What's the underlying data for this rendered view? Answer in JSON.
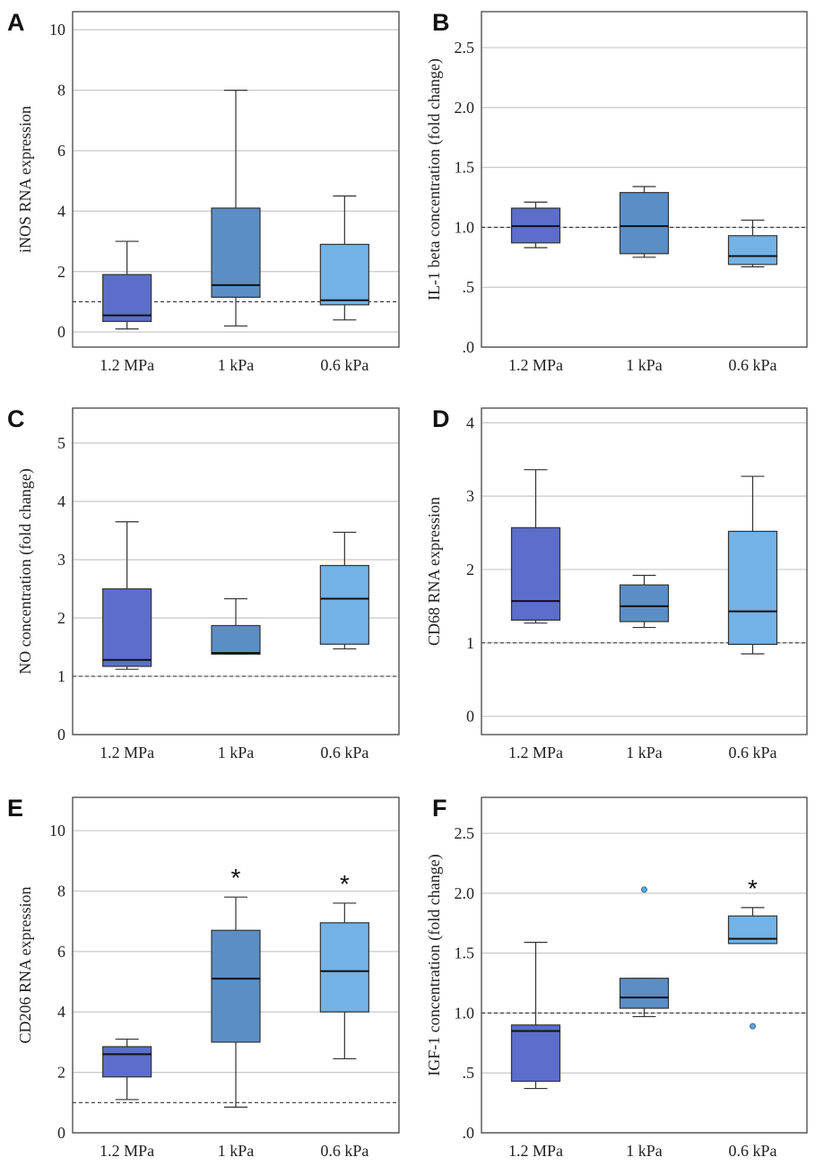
{
  "chart_data": [
    {
      "panel": "A",
      "type": "box",
      "ylabel": "iNOS RNA expression",
      "categories": [
        "1.2 MPa",
        "1 kPa",
        "0.6 kPa"
      ],
      "yticks": [
        "0",
        "2",
        "4",
        "6",
        "8",
        "10"
      ],
      "ylim": [
        -0.5,
        10.6
      ],
      "reference_line": 1.0,
      "boxes": [
        {
          "min": 0.1,
          "q1": 0.35,
          "median": 0.55,
          "q3": 1.9,
          "max": 3.0,
          "color": "#5b6ec9"
        },
        {
          "min": 0.2,
          "q1": 1.15,
          "median": 1.55,
          "q3": 4.1,
          "max": 8.0,
          "color": "#5b8ec5"
        },
        {
          "min": 0.4,
          "q1": 0.9,
          "median": 1.05,
          "q3": 2.9,
          "max": 4.5,
          "color": "#72b2e6"
        }
      ],
      "outliers": [],
      "significance": [
        "",
        "",
        ""
      ]
    },
    {
      "panel": "B",
      "type": "box",
      "ylabel": "IL-1 beta concentration (fold change)",
      "categories": [
        "1.2 MPa",
        "1 kPa",
        "0.6 kPa"
      ],
      "yticks": [
        ".0",
        ".5",
        "1.0",
        "1.5",
        "2.0",
        "2.5"
      ],
      "ylim": [
        0,
        2.8
      ],
      "reference_line": 1.0,
      "boxes": [
        {
          "min": 0.83,
          "q1": 0.87,
          "median": 1.01,
          "q3": 1.16,
          "max": 1.21,
          "color": "#5b6ec9"
        },
        {
          "min": 0.75,
          "q1": 0.78,
          "median": 1.01,
          "q3": 1.29,
          "max": 1.34,
          "color": "#5b8ec5"
        },
        {
          "min": 0.67,
          "q1": 0.69,
          "median": 0.76,
          "q3": 0.93,
          "max": 1.06,
          "color": "#72b2e6"
        }
      ],
      "outliers": [],
      "significance": [
        "",
        "",
        ""
      ]
    },
    {
      "panel": "C",
      "type": "box",
      "ylabel": "NO concentration (fold change)",
      "categories": [
        "1.2 MPa",
        "1 kPa",
        "0.6 kPa"
      ],
      "yticks": [
        "0",
        "1",
        "2",
        "3",
        "4",
        "5"
      ],
      "ylim": [
        0,
        5.6
      ],
      "reference_line": 1.0,
      "boxes": [
        {
          "min": 1.12,
          "q1": 1.17,
          "median": 1.28,
          "q3": 2.5,
          "max": 3.65,
          "color": "#5b6ec9"
        },
        {
          "min": 1.38,
          "q1": 1.38,
          "median": 1.4,
          "q3": 1.87,
          "max": 2.33,
          "color": "#5b8ec5"
        },
        {
          "min": 1.47,
          "q1": 1.55,
          "median": 2.33,
          "q3": 2.9,
          "max": 3.47,
          "color": "#72b2e6"
        }
      ],
      "outliers": [],
      "significance": [
        "",
        "",
        ""
      ]
    },
    {
      "panel": "D",
      "type": "box",
      "ylabel": "CD68 RNA expression",
      "categories": [
        "1.2 MPa",
        "1 kPa",
        "0.6 kPa"
      ],
      "yticks": [
        "0",
        "1",
        "2",
        "3",
        "4"
      ],
      "ylim": [
        -0.25,
        4.2
      ],
      "reference_line": 1.0,
      "boxes": [
        {
          "min": 1.27,
          "q1": 1.31,
          "median": 1.57,
          "q3": 2.57,
          "max": 3.36,
          "color": "#5b6ec9"
        },
        {
          "min": 1.21,
          "q1": 1.29,
          "median": 1.5,
          "q3": 1.79,
          "max": 1.92,
          "color": "#5b8ec5"
        },
        {
          "min": 0.85,
          "q1": 0.98,
          "median": 1.43,
          "q3": 2.52,
          "max": 3.27,
          "color": "#72b2e6"
        }
      ],
      "outliers": [],
      "significance": [
        "",
        "",
        ""
      ]
    },
    {
      "panel": "E",
      "type": "box",
      "ylabel": "CD206 RNA expression",
      "categories": [
        "1.2 MPa",
        "1 kPa",
        "0.6 kPa"
      ],
      "yticks": [
        "0",
        "2",
        "4",
        "6",
        "8",
        "10"
      ],
      "ylim": [
        0,
        11.1
      ],
      "reference_line": 1.0,
      "boxes": [
        {
          "min": 1.1,
          "q1": 1.85,
          "median": 2.6,
          "q3": 2.85,
          "max": 3.1,
          "color": "#5b6ec9"
        },
        {
          "min": 0.85,
          "q1": 3.0,
          "median": 5.1,
          "q3": 6.7,
          "max": 7.8,
          "color": "#5b8ec5"
        },
        {
          "min": 2.45,
          "q1": 4.0,
          "median": 5.35,
          "q3": 6.95,
          "max": 7.6,
          "color": "#72b2e6"
        }
      ],
      "outliers": [],
      "significance": [
        "",
        "*",
        "*"
      ]
    },
    {
      "panel": "F",
      "type": "box",
      "ylabel": "IGF-1 concentration (fold change)",
      "categories": [
        "1.2 MPa",
        "1 kPa",
        "0.6 kPa"
      ],
      "yticks": [
        ".0",
        ".5",
        "1.0",
        "1.5",
        "2.0",
        "2.5"
      ],
      "ylim": [
        0,
        2.8
      ],
      "reference_line": 1.0,
      "boxes": [
        {
          "min": 0.37,
          "q1": 0.43,
          "median": 0.85,
          "q3": 0.9,
          "max": 1.59,
          "color": "#5b6ec9"
        },
        {
          "min": 0.97,
          "q1": 1.04,
          "median": 1.13,
          "q3": 1.29,
          "max": 1.29,
          "color": "#5b8ec5"
        },
        {
          "min": 1.58,
          "q1": 1.58,
          "median": 1.62,
          "q3": 1.81,
          "max": 1.88,
          "color": "#72b2e6"
        }
      ],
      "outliers": [
        {
          "category": 1,
          "value": 2.03
        },
        {
          "category": 2,
          "value": 0.89
        }
      ],
      "significance": [
        "",
        "",
        "*"
      ]
    }
  ]
}
